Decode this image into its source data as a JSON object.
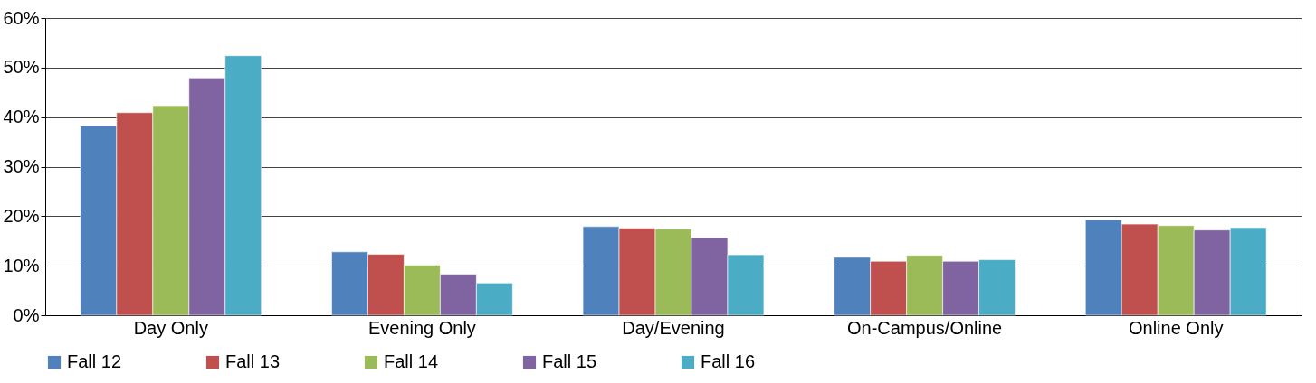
{
  "chart_data": {
    "type": "bar",
    "categories": [
      "Day Only",
      "Evening Only",
      "Day/Evening",
      "On-Campus/Online",
      "Online Only"
    ],
    "series": [
      {
        "name": "Fall 12",
        "color": "#4f81bd",
        "values": [
          38.2,
          12.8,
          17.9,
          11.7,
          19.3
        ]
      },
      {
        "name": "Fall 13",
        "color": "#c0504d",
        "values": [
          40.9,
          12.3,
          17.6,
          10.9,
          18.4
        ]
      },
      {
        "name": "Fall 14",
        "color": "#9bbb59",
        "values": [
          42.3,
          10.1,
          17.4,
          12.1,
          18.1
        ]
      },
      {
        "name": "Fall 15",
        "color": "#8064a2",
        "values": [
          47.9,
          8.3,
          15.7,
          10.9,
          17.2
        ]
      },
      {
        "name": "Fall 16",
        "color": "#4bacc6",
        "values": [
          52.4,
          6.5,
          12.2,
          11.2,
          17.7
        ]
      }
    ],
    "ylim": [
      0,
      60
    ],
    "yticks": [
      {
        "value": 0,
        "label": "0%"
      },
      {
        "value": 10,
        "label": "10%"
      },
      {
        "value": 20,
        "label": "20%"
      },
      {
        "value": 30,
        "label": "30%"
      },
      {
        "value": 40,
        "label": "40%"
      },
      {
        "value": 50,
        "label": "50%"
      },
      {
        "value": 60,
        "label": "60%"
      }
    ],
    "grid": "y",
    "legend": "bottom"
  }
}
